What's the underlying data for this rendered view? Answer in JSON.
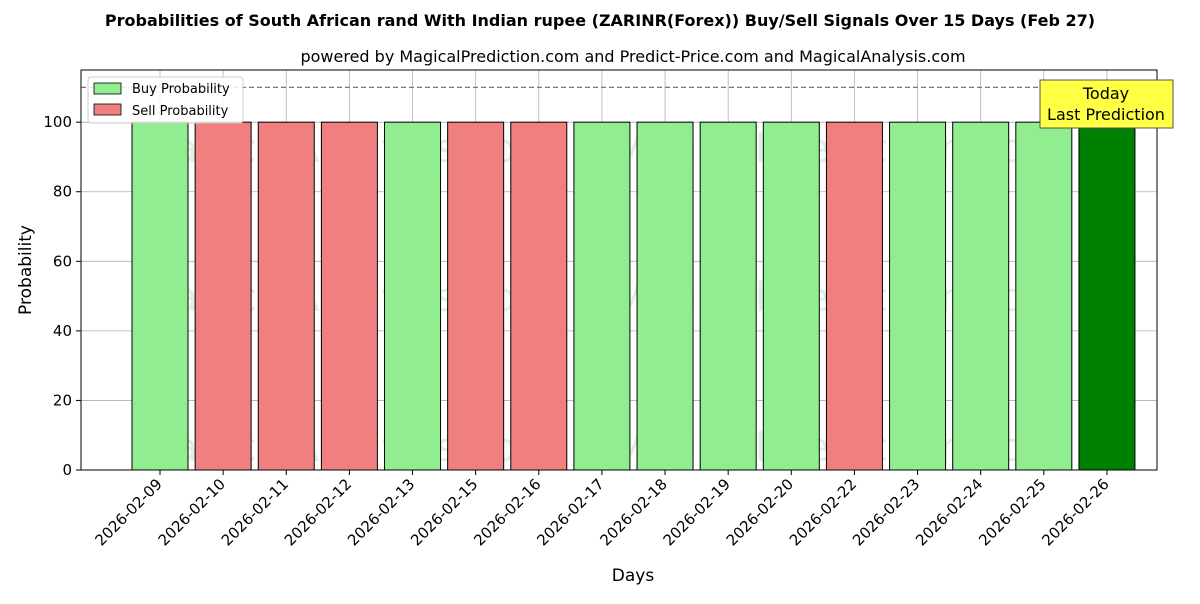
{
  "chart_data": {
    "type": "bar",
    "title": "Probabilities of South African rand With Indian rupee (ZARINR(Forex)) Buy/Sell Signals Over 15 Days (Feb 27)",
    "subtitle": "powered by MagicalPrediction.com and Predict-Price.com and MagicalAnalysis.com",
    "xlabel": "Days",
    "ylabel": "Probability",
    "ylim": [
      0,
      115
    ],
    "yticks": [
      0,
      20,
      40,
      60,
      80,
      100
    ],
    "grid": true,
    "legend_position": "top-left",
    "reference_line": 110,
    "categories": [
      "2026-02-09",
      "2026-02-10",
      "2026-02-11",
      "2026-02-12",
      "2026-02-13",
      "2026-02-15",
      "2026-02-16",
      "2026-02-17",
      "2026-02-18",
      "2026-02-19",
      "2026-02-20",
      "2026-02-22",
      "2026-02-23",
      "2026-02-24",
      "2026-02-25",
      "2026-02-26"
    ],
    "values": [
      100,
      100,
      100,
      100,
      100,
      100,
      100,
      100,
      100,
      100,
      100,
      100,
      100,
      100,
      100,
      100
    ],
    "signals": [
      "buy",
      "sell",
      "sell",
      "sell",
      "buy",
      "sell",
      "sell",
      "buy",
      "buy",
      "buy",
      "buy",
      "sell",
      "buy",
      "buy",
      "buy",
      "today"
    ],
    "series": [
      {
        "name": "Buy Probability",
        "color": "#90ee90"
      },
      {
        "name": "Sell Probability",
        "color": "#f08080"
      }
    ],
    "today_color": "#008000",
    "annotation": {
      "line1": "Today",
      "line2": "Last Prediction",
      "color": "#ffff44"
    },
    "watermarks": [
      "MagicalAnalysis.com",
      "MagicalPrediction.com"
    ]
  }
}
